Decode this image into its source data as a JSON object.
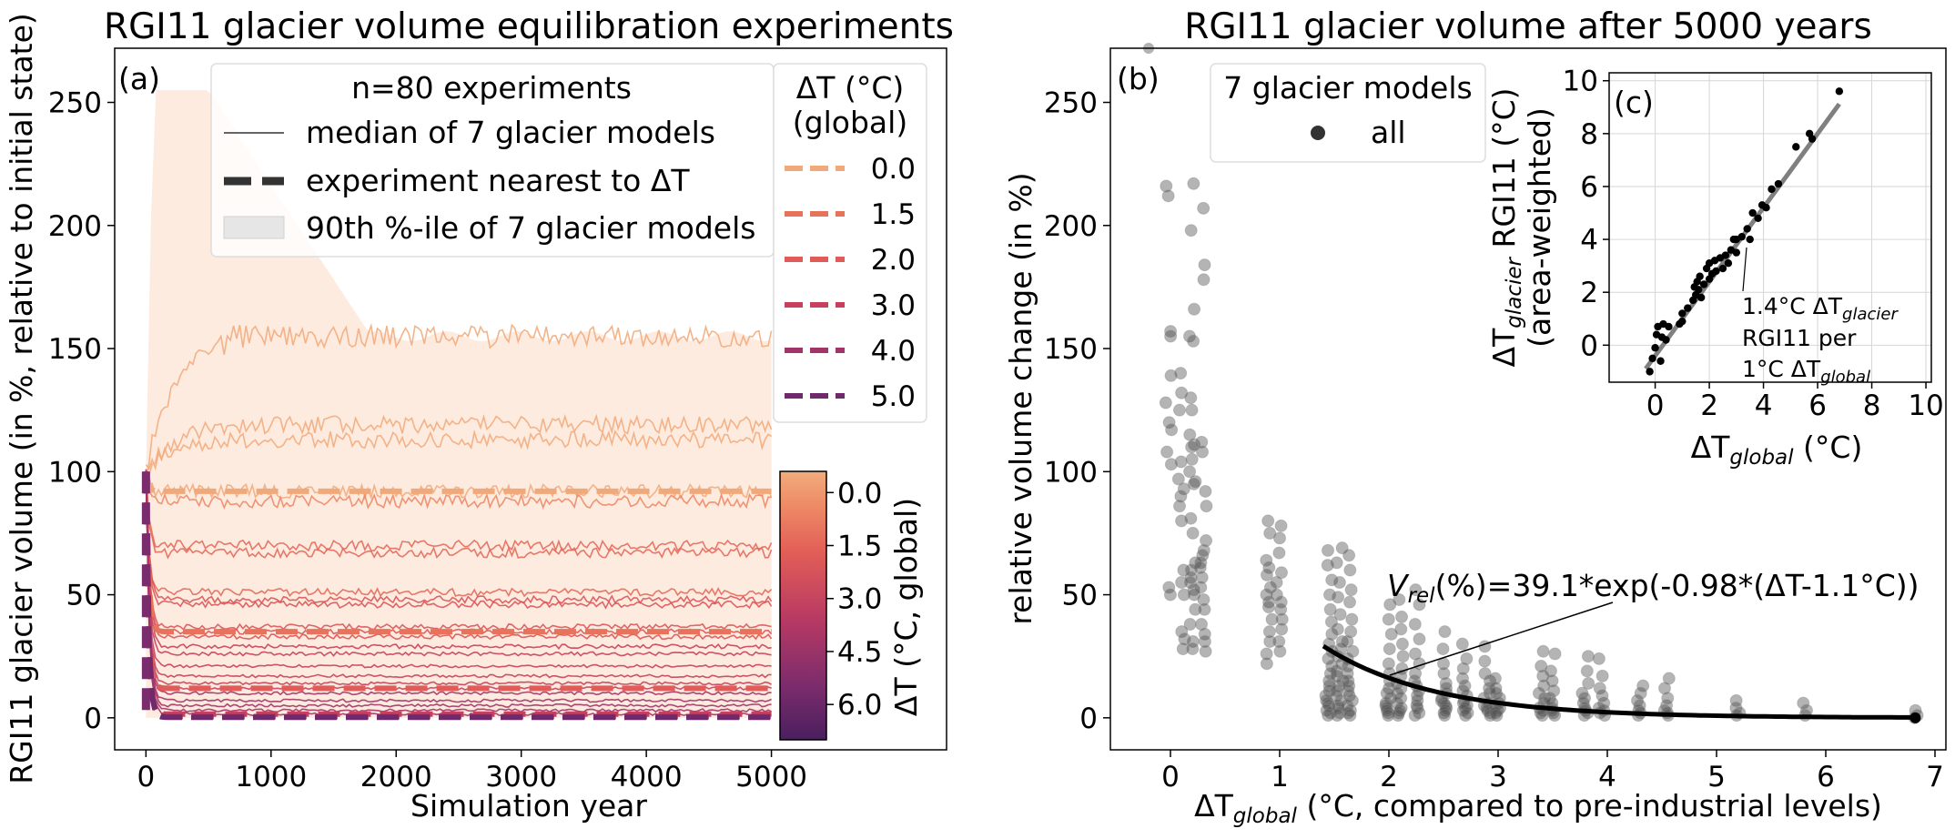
{
  "chart_data": [
    {
      "panel": "(a)",
      "type": "line",
      "title": "RGI11 glacier volume equilibration experiments",
      "xlabel": "Simulation year",
      "ylabel": "RGI11 glacier volume (in %, relative to initial state)",
      "xlim": [
        -250,
        6400
      ],
      "ylim": [
        -13,
        272
      ],
      "xticks": [
        0,
        1000,
        2000,
        3000,
        4000,
        5000
      ],
      "yticks": [
        0,
        50,
        100,
        150,
        200,
        250
      ],
      "grid": false,
      "band_90th_upper_max": 255,
      "band_90th_plateau": 155,
      "legend_top": {
        "title": "n=80 experiments",
        "entries": [
          "median of 7 glacier models",
          "experiment nearest to ΔT",
          "90th %-ile of 7 glacier models"
        ],
        "placement": "top-center"
      },
      "legend_dt": {
        "title_line1": "ΔT (°C)",
        "title_line2": "(global)",
        "entries": [
          "0.0",
          "1.5",
          "2.0",
          "3.0",
          "4.0",
          "5.0"
        ],
        "colors": [
          "#f0a97a",
          "#e8735c",
          "#df5c58",
          "#c8405e",
          "#a13569",
          "#6f2a6b"
        ],
        "placement": "top-right"
      },
      "median_series_final_levels": [
        155,
        119,
        113,
        92,
        88,
        70,
        67,
        51,
        48,
        46,
        37,
        35,
        33,
        29,
        26,
        21,
        17,
        14,
        12,
        10,
        7,
        5,
        3,
        1.5
      ],
      "nearest_series_final_levels": [
        92,
        35,
        12,
        1.5,
        0.5,
        0.2
      ],
      "colorbar": {
        "label": "ΔT (°C, global)",
        "ticks": [
          "0.0",
          "1.5",
          "3.0",
          "4.5",
          "6.0"
        ],
        "range": [
          -0.6,
          7.0
        ]
      }
    },
    {
      "panel": "(b)",
      "type": "scatter",
      "title": "RGI11 glacier volume after 5000 years",
      "xlabel_main": "ΔT",
      "xlabel_sub": "global",
      "xlabel_rest": " (°C, compared to pre-industrial levels)",
      "ylabel": "relative volume change (in %)",
      "xlim": [
        -0.55,
        7.1
      ],
      "ylim": [
        -13,
        272
      ],
      "xticks": [
        0,
        1,
        2,
        3,
        4,
        5,
        6,
        7
      ],
      "yticks": [
        0,
        50,
        100,
        150,
        200,
        250
      ],
      "legend": {
        "title": "7 glacier models",
        "entries": [
          "all"
        ],
        "placement": "top-center"
      },
      "fit": {
        "a": 39.1,
        "k": 0.98,
        "x0": 1.1,
        "x_range": [
          1.4,
          6.83
        ]
      },
      "annotation": {
        "prefix": "V",
        "sub": "rel",
        "rest": "(%)=39.1*exp(-0.98*(ΔT-1.1°C))"
      },
      "groups": [
        {
          "x": -0.02,
          "y": [
            216,
            212,
            157,
            155,
            139,
            128,
            120,
            117,
            108,
            103,
            53,
            50
          ]
        },
        {
          "x": 0.1,
          "y": [
            140,
            132,
            125,
            104,
            97,
            93,
            90,
            86,
            80,
            60,
            55,
            50,
            35,
            32,
            28
          ]
        },
        {
          "x": 0.2,
          "y": [
            217,
            198,
            166,
            155,
            153,
            130,
            125,
            115,
            111,
            110,
            105,
            100,
            96,
            95,
            81,
            75,
            63,
            60,
            57,
            55,
            52,
            50,
            44,
            38,
            31,
            28
          ]
        },
        {
          "x": 0.3,
          "y": [
            207,
            184,
            178,
            112,
            108,
            92,
            86,
            72,
            68,
            66,
            63,
            61,
            57,
            53,
            48,
            44,
            38,
            34,
            31,
            27
          ]
        },
        {
          "x": 0.9,
          "y": [
            80,
            75,
            64,
            61,
            58,
            53,
            50,
            47,
            45,
            40,
            35,
            31,
            26,
            22
          ]
        },
        {
          "x": 1.0,
          "y": [
            78,
            73,
            67,
            59,
            55,
            50,
            47,
            44,
            40,
            36,
            31,
            27
          ]
        },
        {
          "x": 1.45,
          "y": [
            68,
            62,
            56,
            50,
            44,
            39,
            34,
            30,
            27,
            24,
            21,
            18,
            15,
            13,
            11,
            9,
            7,
            6,
            5,
            3,
            2,
            1
          ]
        },
        {
          "x": 1.55,
          "y": [
            69,
            63,
            55,
            49,
            42,
            36,
            31,
            28,
            25,
            22,
            19,
            17,
            15,
            13,
            11,
            9,
            7,
            5,
            4,
            2,
            1
          ]
        },
        {
          "x": 1.65,
          "y": [
            66,
            60,
            52,
            47,
            40,
            35,
            31,
            27,
            24,
            21,
            18,
            15,
            13,
            11,
            9,
            7,
            5,
            3,
            2,
            1
          ]
        },
        {
          "x": 2.0,
          "y": [
            46,
            40,
            34,
            28,
            22,
            18,
            15,
            12,
            10,
            8,
            6,
            5,
            4,
            3,
            2,
            1
          ]
        },
        {
          "x": 2.1,
          "y": [
            48,
            41,
            36,
            30,
            25,
            20,
            17,
            14,
            12,
            10,
            8,
            6,
            4,
            3,
            2,
            1
          ]
        },
        {
          "x": 2.25,
          "y": [
            52,
            46,
            38,
            32,
            26,
            22,
            18,
            15,
            13,
            11,
            9,
            7,
            5,
            4,
            2,
            1
          ]
        },
        {
          "x": 2.5,
          "y": [
            35,
            28,
            22,
            18,
            14,
            12,
            10,
            8,
            7,
            6,
            5,
            4,
            3,
            2,
            1
          ]
        },
        {
          "x": 2.7,
          "y": [
            30,
            24,
            20,
            16,
            13,
            11,
            9,
            7,
            6,
            5,
            4,
            3,
            2,
            1
          ]
        },
        {
          "x": 2.9,
          "y": [
            29,
            23,
            18,
            15,
            12,
            10,
            8,
            6,
            5,
            4,
            3,
            2,
            1
          ]
        },
        {
          "x": 3.0,
          "y": [
            16,
            12,
            10,
            8,
            6,
            5,
            4,
            3,
            2,
            1
          ]
        },
        {
          "x": 3.4,
          "y": [
            27,
            21,
            17,
            13,
            10,
            8,
            6,
            4,
            3,
            2,
            1
          ]
        },
        {
          "x": 3.5,
          "y": [
            26,
            19,
            15,
            11,
            8,
            6,
            4,
            3,
            2,
            1
          ]
        },
        {
          "x": 3.8,
          "y": [
            25,
            19,
            14,
            10,
            8,
            6,
            4,
            3,
            2,
            1
          ]
        },
        {
          "x": 3.95,
          "y": [
            24,
            17,
            12,
            9,
            6,
            4,
            3,
            2,
            1
          ]
        },
        {
          "x": 4.3,
          "y": [
            13,
            10,
            7,
            5,
            3,
            2,
            1
          ]
        },
        {
          "x": 4.55,
          "y": [
            16,
            12,
            8,
            5,
            3,
            2,
            1
          ]
        },
        {
          "x": 5.2,
          "y": [
            7,
            4,
            2,
            1
          ]
        },
        {
          "x": 5.8,
          "y": [
            6,
            3,
            1
          ]
        },
        {
          "x": 6.82,
          "y": [
            3,
            1,
            0
          ]
        }
      ]
    },
    {
      "panel": "(c)",
      "type": "scatter",
      "xlabel_main": "ΔT",
      "xlabel_sub": "global",
      "xlabel_rest": " (°C)",
      "ylabel_line1_main": "ΔT",
      "ylabel_line1_sub": "glacier",
      "ylabel_line1_rest": " RGI11 (°C)",
      "ylabel_line2": "(area-weighted)",
      "xlim": [
        -1.7,
        10.2
      ],
      "ylim": [
        -1.4,
        10.3
      ],
      "xticks": [
        0,
        2,
        4,
        6,
        8,
        10
      ],
      "yticks": [
        0,
        2,
        4,
        6,
        8,
        10
      ],
      "grid": true,
      "fit": {
        "slope": 1.4,
        "intercept": -0.4,
        "x_range": [
          -0.35,
          6.8
        ]
      },
      "annotation": {
        "line1_prefix": "1.4°C ΔT",
        "line1_sub": "glacier",
        "line2": "RGI11 per",
        "line3_prefix": "1°C ΔT",
        "line3_sub": "global"
      },
      "points": [
        [
          -0.2,
          -1.0
        ],
        [
          -0.1,
          -0.5
        ],
        [
          0.0,
          -0.1
        ],
        [
          0.05,
          0.4
        ],
        [
          0.1,
          0.7
        ],
        [
          0.2,
          -0.6
        ],
        [
          0.25,
          0.3
        ],
        [
          0.3,
          0.8
        ],
        [
          0.4,
          0.2
        ],
        [
          0.5,
          0.7
        ],
        [
          0.9,
          0.8
        ],
        [
          1.0,
          1.2
        ],
        [
          1.0,
          0.9
        ],
        [
          1.2,
          1.4
        ],
        [
          1.4,
          1.7
        ],
        [
          1.45,
          2.2
        ],
        [
          1.5,
          1.9
        ],
        [
          1.55,
          2.4
        ],
        [
          1.6,
          2.1
        ],
        [
          1.65,
          2.6
        ],
        [
          1.7,
          1.8
        ],
        [
          1.8,
          2.3
        ],
        [
          1.9,
          2.9
        ],
        [
          2.0,
          2.5
        ],
        [
          2.0,
          3.1
        ],
        [
          2.1,
          2.7
        ],
        [
          2.2,
          3.2
        ],
        [
          2.25,
          2.8
        ],
        [
          2.4,
          3.3
        ],
        [
          2.5,
          2.9
        ],
        [
          2.6,
          3.4
        ],
        [
          2.7,
          3.1
        ],
        [
          2.8,
          3.6
        ],
        [
          2.9,
          4.0
        ],
        [
          3.0,
          3.5
        ],
        [
          3.0,
          4.0
        ],
        [
          3.2,
          4.1
        ],
        [
          3.4,
          4.4
        ],
        [
          3.5,
          4.0
        ],
        [
          3.6,
          5.0
        ],
        [
          3.8,
          4.8
        ],
        [
          3.95,
          5.3
        ],
        [
          4.1,
          5.2
        ],
        [
          4.3,
          5.9
        ],
        [
          4.55,
          6.1
        ],
        [
          5.2,
          7.5
        ],
        [
          5.8,
          7.8
        ],
        [
          5.7,
          8.0
        ],
        [
          6.8,
          9.6
        ]
      ]
    }
  ]
}
